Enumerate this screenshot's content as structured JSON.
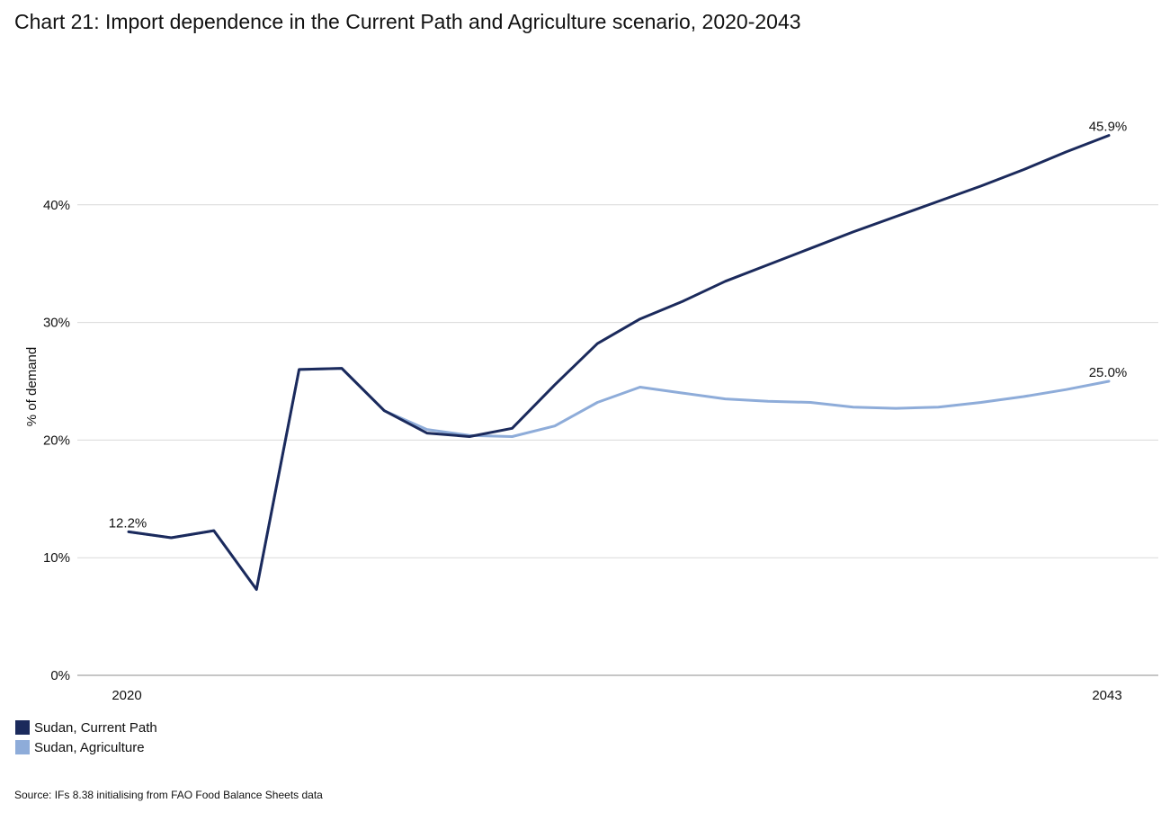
{
  "chart_data": {
    "type": "line",
    "title": "Chart 21: Import dependence in the Current Path and Agriculture scenario, 2020-2043",
    "xlabel": "",
    "ylabel": "% of demand",
    "x": [
      2020,
      2021,
      2022,
      2023,
      2024,
      2025,
      2026,
      2027,
      2028,
      2029,
      2030,
      2031,
      2032,
      2033,
      2034,
      2035,
      2036,
      2037,
      2038,
      2039,
      2040,
      2041,
      2042,
      2043
    ],
    "x_tick_labels": [
      "2020",
      "2043"
    ],
    "y_tick_labels": [
      "0%",
      "10%",
      "20%",
      "30%",
      "40%"
    ],
    "y_ticks": [
      0,
      10,
      20,
      30,
      40
    ],
    "ylim": [
      0,
      50
    ],
    "grid": true,
    "series": [
      {
        "name": "Sudan, Current Path",
        "color": "#1b2a5c",
        "values": [
          12.2,
          11.7,
          12.3,
          7.3,
          26.0,
          26.1,
          22.5,
          20.6,
          20.3,
          21.0,
          24.7,
          28.2,
          30.3,
          31.8,
          33.5,
          34.9,
          36.3,
          37.7,
          39.0,
          40.3,
          41.6,
          43.0,
          44.5,
          45.9
        ],
        "annotations": [
          {
            "index": 0,
            "label": "12.2%"
          },
          {
            "index": 23,
            "label": "45.9%"
          }
        ]
      },
      {
        "name": "Sudan, Agriculture",
        "color": "#8eacd9",
        "values": [
          12.2,
          11.7,
          12.3,
          7.3,
          26.0,
          26.1,
          22.5,
          20.9,
          20.4,
          20.3,
          21.2,
          23.2,
          24.5,
          24.0,
          23.5,
          23.3,
          23.2,
          22.8,
          22.7,
          22.8,
          23.2,
          23.7,
          24.3,
          25.0
        ],
        "annotations": [
          {
            "index": 23,
            "label": "25.0%"
          }
        ]
      }
    ],
    "legend_position": "bottom-left"
  },
  "source": "Source: IFs 8.38 initialising from FAO Food Balance Sheets data"
}
